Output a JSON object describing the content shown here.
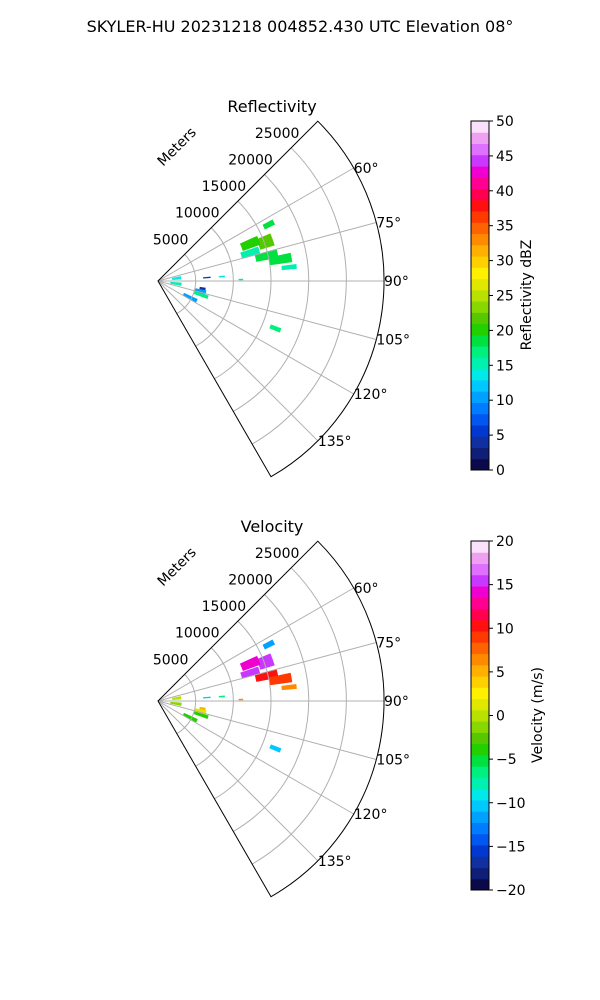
{
  "figure": {
    "title": "SKYLER-HU  20231218  004852.430 UTC Elevation 08°"
  },
  "colors": {
    "grid": "#b0b0b0",
    "frame": "#000000",
    "background": "#ffffff"
  },
  "chart_data": [
    {
      "type": "heatmap",
      "projection": "polar-sector",
      "title": "Reflectivity",
      "range_label": "Meters",
      "azimuth_range": [
        45,
        150
      ],
      "range_limit": [
        0,
        30000
      ],
      "range_ticks": [
        5000,
        10000,
        15000,
        20000,
        25000
      ],
      "range_tick_labels": [
        "5000",
        "10000",
        "15000",
        "20000",
        "25000"
      ],
      "azimuth_ticks": [
        60,
        75,
        90,
        105,
        120,
        135
      ],
      "azimuth_tick_labels": [
        "60°",
        "75°",
        "90°",
        "105°",
        "120°",
        "135°"
      ],
      "grid": true,
      "colorbar": {
        "label": "Reflectivity dBZ",
        "range": [
          0,
          50
        ],
        "ticks": [
          0,
          5,
          10,
          15,
          20,
          25,
          30,
          35,
          40,
          45,
          50
        ],
        "tick_labels": [
          "0",
          "5",
          "10",
          "15",
          "20",
          "25",
          "30",
          "35",
          "40",
          "45",
          "50"
        ],
        "colormap": [
          "#0a0a4a",
          "#0f1f78",
          "#102fa0",
          "#0038d0",
          "#0058f0",
          "#007cff",
          "#00a0ff",
          "#00c8ff",
          "#00e8e8",
          "#00f0b0",
          "#00f080",
          "#00e040",
          "#22d000",
          "#55c800",
          "#88d800",
          "#b8e000",
          "#e0e800",
          "#fff000",
          "#ffd000",
          "#ffb000",
          "#ff8a00",
          "#ff6200",
          "#ff3a00",
          "#ff1010",
          "#ff0050",
          "#ff0090",
          "#f000d0",
          "#c838ff",
          "#e070ff",
          "#f0a0f0",
          "#fbe0fb"
        ]
      },
      "echoes": [
        {
          "az": 63,
          "r": 16500,
          "da": 2.5,
          "dr": 1500,
          "value": 18
        },
        {
          "az": 70,
          "r": 15200,
          "da": 6,
          "dr": 2000,
          "value": 22
        },
        {
          "az": 68,
          "r": 13200,
          "da": 5,
          "dr": 2500,
          "value": 20
        },
        {
          "az": 73,
          "r": 12800,
          "da": 4,
          "dr": 2500,
          "value": 16
        },
        {
          "az": 77,
          "r": 14800,
          "da": 4,
          "dr": 3000,
          "value": 19
        },
        {
          "az": 80,
          "r": 16500,
          "da": 4,
          "dr": 3000,
          "value": 18
        },
        {
          "az": 84,
          "r": 17500,
          "da": 2,
          "dr": 2000,
          "value": 16
        },
        {
          "az": 86,
          "r": 6500,
          "da": 1.5,
          "dr": 1000,
          "value": 6
        },
        {
          "az": 86,
          "r": 8500,
          "da": 1.5,
          "dr": 800,
          "value": 14
        },
        {
          "az": 89,
          "r": 11000,
          "da": 1,
          "dr": 600,
          "value": 17
        },
        {
          "az": 82,
          "r": 2500,
          "da": 8,
          "dr": 1200,
          "value": 14
        },
        {
          "az": 98,
          "r": 2400,
          "da": 8,
          "dr": 1500,
          "value": 16
        },
        {
          "az": 100,
          "r": 6000,
          "da": 4,
          "dr": 800,
          "value": 4
        },
        {
          "az": 104,
          "r": 5800,
          "da": 6,
          "dr": 1500,
          "value": 11
        },
        {
          "az": 108,
          "r": 6000,
          "da": 4,
          "dr": 2000,
          "value": 17
        },
        {
          "az": 117,
          "r": 4800,
          "da": 5,
          "dr": 2000,
          "value": 11
        },
        {
          "az": 112,
          "r": 16800,
          "da": 2,
          "dr": 1500,
          "value": 17
        }
      ]
    },
    {
      "type": "heatmap",
      "projection": "polar-sector",
      "title": "Velocity",
      "range_label": "Meters",
      "azimuth_range": [
        45,
        150
      ],
      "range_limit": [
        0,
        30000
      ],
      "range_ticks": [
        5000,
        10000,
        15000,
        20000,
        25000
      ],
      "range_tick_labels": [
        "5000",
        "10000",
        "15000",
        "20000",
        "25000"
      ],
      "azimuth_ticks": [
        60,
        75,
        90,
        105,
        120,
        135
      ],
      "azimuth_tick_labels": [
        "60°",
        "75°",
        "90°",
        "105°",
        "120°",
        "135°"
      ],
      "grid": true,
      "colorbar": {
        "label": "Velocity (m/s)",
        "range": [
          -20,
          20
        ],
        "ticks": [
          -20,
          -15,
          -10,
          -5,
          0,
          5,
          10,
          15,
          20
        ],
        "tick_labels": [
          "−20",
          "−15",
          "−10",
          "−5",
          "0",
          "5",
          "10",
          "15",
          "20"
        ],
        "colormap": [
          "#0a0a4a",
          "#0f1f78",
          "#102fa0",
          "#0038d0",
          "#0058f0",
          "#007cff",
          "#00a0ff",
          "#00c8ff",
          "#00e8e8",
          "#00f0b0",
          "#00f080",
          "#00e040",
          "#22d000",
          "#55c800",
          "#88d800",
          "#b8e000",
          "#e0e800",
          "#fff000",
          "#ffd000",
          "#ffb000",
          "#ff8a00",
          "#ff6200",
          "#ff3a00",
          "#ff1010",
          "#ff0050",
          "#ff0090",
          "#f000d0",
          "#c838ff",
          "#e070ff",
          "#f0a0f0",
          "#fbe0fb"
        ]
      },
      "echoes": [
        {
          "az": 63,
          "r": 16500,
          "da": 2.5,
          "dr": 1500,
          "value": -11
        },
        {
          "az": 70,
          "r": 15200,
          "da": 6,
          "dr": 2000,
          "value": 15
        },
        {
          "az": 68,
          "r": 13200,
          "da": 5,
          "dr": 2500,
          "value": 14
        },
        {
          "az": 73,
          "r": 12800,
          "da": 4,
          "dr": 2500,
          "value": 16
        },
        {
          "az": 77,
          "r": 14800,
          "da": 4,
          "dr": 3000,
          "value": 10
        },
        {
          "az": 80,
          "r": 16500,
          "da": 4,
          "dr": 3000,
          "value": 9
        },
        {
          "az": 84,
          "r": 17500,
          "da": 2,
          "dr": 2000,
          "value": 6
        },
        {
          "az": 86,
          "r": 6500,
          "da": 1.5,
          "dr": 1000,
          "value": -10
        },
        {
          "az": 86,
          "r": 8500,
          "da": 1.5,
          "dr": 800,
          "value": -6
        },
        {
          "az": 89,
          "r": 11000,
          "da": 1,
          "dr": 600,
          "value": 7
        },
        {
          "az": 82,
          "r": 2500,
          "da": 8,
          "dr": 1200,
          "value": 0
        },
        {
          "az": 98,
          "r": 2400,
          "da": 8,
          "dr": 1500,
          "value": -1
        },
        {
          "az": 100,
          "r": 6000,
          "da": 4,
          "dr": 800,
          "value": 5
        },
        {
          "az": 104,
          "r": 5800,
          "da": 6,
          "dr": 1500,
          "value": 1
        },
        {
          "az": 108,
          "r": 6000,
          "da": 4,
          "dr": 2000,
          "value": -4
        },
        {
          "az": 117,
          "r": 4800,
          "da": 5,
          "dr": 2000,
          "value": -4
        },
        {
          "az": 112,
          "r": 16800,
          "da": 2,
          "dr": 1500,
          "value": -10
        }
      ]
    }
  ]
}
